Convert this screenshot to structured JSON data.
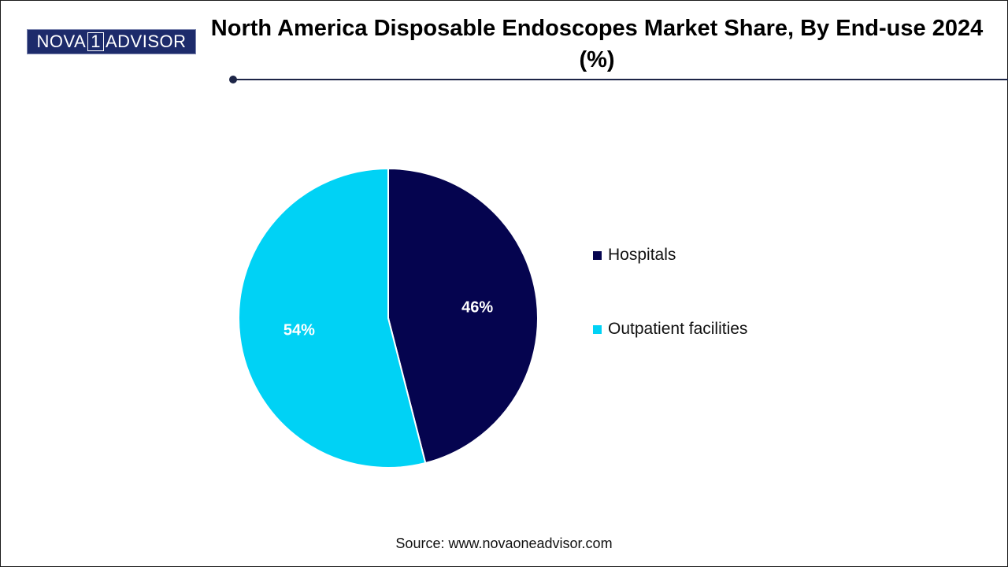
{
  "logo": {
    "part1": "NOVA",
    "part2": "1",
    "part3": "ADVISOR"
  },
  "source": "Source: www.novaoneadvisor.com",
  "chart_data": {
    "type": "pie",
    "title": "North America Disposable Endoscopes Market Share, By End-use 2024 (%)",
    "categories": [
      "Hospitals",
      "Outpatient facilities"
    ],
    "values": [
      46,
      54
    ],
    "labels": [
      "46%",
      "54%"
    ],
    "colors": [
      "#05044f",
      "#00d2f5"
    ],
    "legend_position": "right"
  }
}
